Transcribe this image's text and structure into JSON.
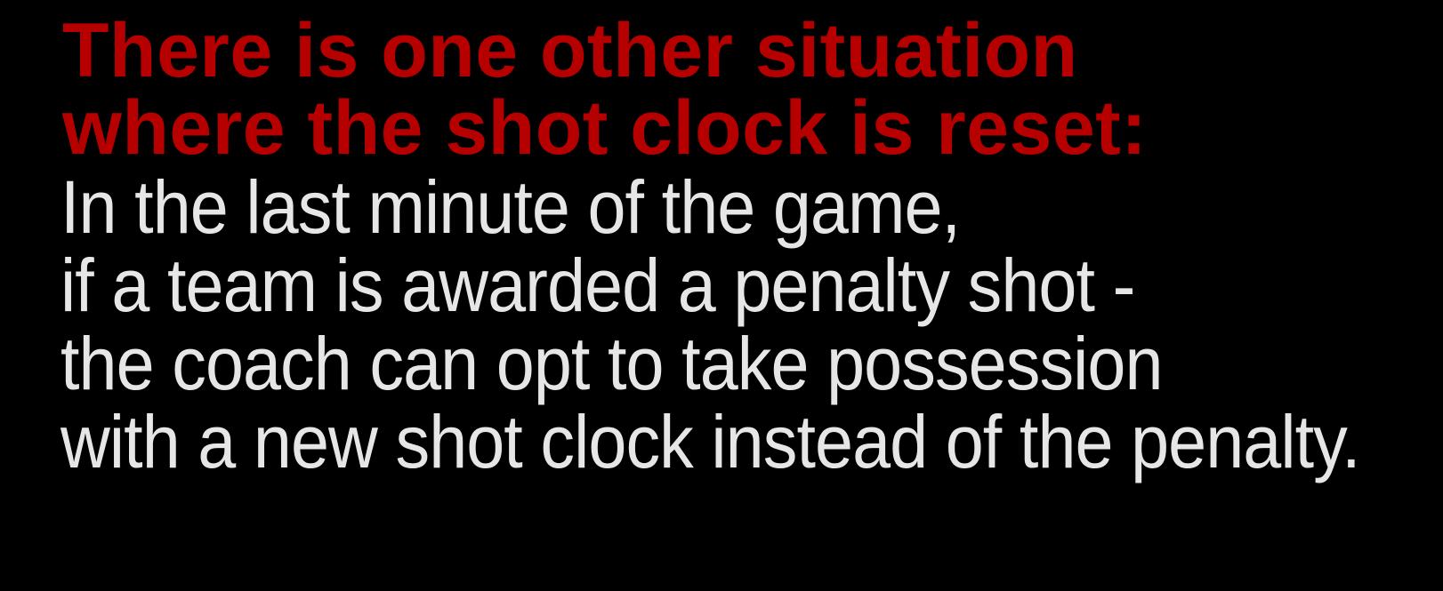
{
  "colors": {
    "background": "#000000",
    "heading": "#b60000",
    "body": "#e6e6e6"
  },
  "heading": {
    "lines": [
      "There is one other situation",
      "where the shot clock is reset:"
    ]
  },
  "body": {
    "lines": [
      "In the last minute of the game,",
      "if a team is awarded a penalty shot -",
      "the coach can opt to take possession",
      "with a new shot clock instead of the penalty."
    ]
  }
}
